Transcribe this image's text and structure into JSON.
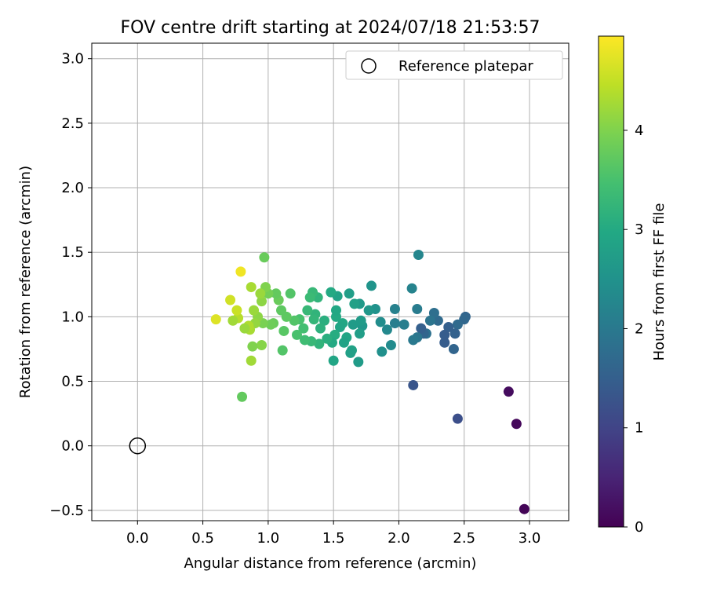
{
  "chart_data": {
    "type": "scatter",
    "title": "FOV centre drift starting at 2024/07/18 21:53:57",
    "xlabel": "Angular distance from reference (arcmin)",
    "ylabel": "Rotation from reference (arcmin)",
    "xlim": [
      -0.35,
      3.3
    ],
    "ylim": [
      -0.58,
      3.12
    ],
    "xticks": [
      "0.0",
      "0.5",
      "1.0",
      "1.5",
      "2.0",
      "2.5",
      "3.0"
    ],
    "yticks": [
      "−0.5",
      "0.0",
      "0.5",
      "1.0",
      "1.5",
      "2.0",
      "2.5",
      "3.0"
    ],
    "grid": true,
    "legend": {
      "position": "top-right",
      "entries": [
        {
          "label": "Reference platepar",
          "marker": "open-circle"
        }
      ]
    },
    "reference": {
      "x": 0.0,
      "y": 0.0
    },
    "colorbar": {
      "label": "Hours from first FF file",
      "ticks": [
        "0",
        "1",
        "2",
        "3",
        "4"
      ],
      "range": [
        0,
        4.95
      ],
      "colormap": "viridis"
    },
    "points": [
      [
        2.96,
        -0.49,
        0.05
      ],
      [
        2.9,
        0.17,
        0.1
      ],
      [
        2.84,
        0.42,
        0.15
      ],
      [
        2.45,
        0.21,
        1.2
      ],
      [
        2.11,
        0.47,
        1.3
      ],
      [
        2.51,
        1.0,
        1.6
      ],
      [
        2.5,
        0.98,
        1.65
      ],
      [
        2.45,
        0.94,
        1.7
      ],
      [
        2.43,
        0.87,
        1.55
      ],
      [
        2.42,
        0.75,
        1.6
      ],
      [
        2.38,
        0.92,
        1.5
      ],
      [
        2.35,
        0.86,
        1.45
      ],
      [
        2.35,
        0.8,
        1.45
      ],
      [
        2.3,
        0.97,
        1.7
      ],
      [
        2.27,
        1.03,
        1.8
      ],
      [
        2.24,
        0.97,
        1.9
      ],
      [
        2.21,
        0.87,
        1.85
      ],
      [
        2.19,
        0.87,
        1.6
      ],
      [
        2.17,
        0.91,
        1.5
      ],
      [
        2.14,
        0.84,
        1.95
      ],
      [
        2.11,
        0.82,
        2.0
      ],
      [
        2.14,
        1.06,
        2.05
      ],
      [
        2.1,
        1.22,
        2.2
      ],
      [
        2.15,
        1.48,
        2.25
      ],
      [
        2.04,
        0.94,
        2.1
      ],
      [
        1.97,
        1.06,
        2.15
      ],
      [
        1.97,
        0.95,
        2.1
      ],
      [
        1.94,
        0.78,
        2.35
      ],
      [
        1.91,
        0.9,
        2.3
      ],
      [
        1.87,
        0.73,
        2.45
      ],
      [
        1.86,
        0.96,
        2.4
      ],
      [
        1.82,
        1.06,
        2.5
      ],
      [
        1.79,
        1.24,
        2.55
      ],
      [
        1.77,
        1.05,
        2.6
      ],
      [
        1.72,
        0.93,
        2.6
      ],
      [
        1.71,
        0.97,
        2.7
      ],
      [
        1.7,
        1.1,
        2.65
      ],
      [
        1.7,
        0.87,
        2.75
      ],
      [
        1.69,
        0.65,
        2.7
      ],
      [
        1.66,
        1.1,
        2.8
      ],
      [
        1.65,
        0.94,
        2.7
      ],
      [
        1.64,
        0.74,
        2.85
      ],
      [
        1.63,
        0.72,
        2.8
      ],
      [
        1.62,
        1.18,
        2.75
      ],
      [
        1.6,
        0.84,
        2.9
      ],
      [
        1.58,
        0.8,
        2.85
      ],
      [
        1.57,
        0.95,
        2.95
      ],
      [
        1.55,
        0.92,
        2.9
      ],
      [
        1.53,
        1.16,
        2.85
      ],
      [
        1.52,
        1.0,
        3.0
      ],
      [
        1.52,
        1.05,
        2.95
      ],
      [
        1.51,
        0.86,
        3.05
      ],
      [
        1.5,
        0.66,
        2.9
      ],
      [
        1.49,
        0.8,
        3.0
      ],
      [
        1.48,
        1.19,
        3.0
      ],
      [
        1.45,
        0.83,
        3.1
      ],
      [
        1.43,
        0.97,
        3.1
      ],
      [
        1.4,
        0.91,
        3.15
      ],
      [
        1.39,
        0.79,
        3.2
      ],
      [
        1.38,
        1.15,
        3.2
      ],
      [
        1.36,
        1.02,
        3.2
      ],
      [
        1.35,
        0.98,
        3.25
      ],
      [
        1.34,
        1.19,
        3.3
      ],
      [
        1.33,
        0.81,
        3.3
      ],
      [
        1.32,
        1.15,
        3.35
      ],
      [
        1.3,
        1.05,
        3.3
      ],
      [
        1.28,
        0.82,
        3.4
      ],
      [
        1.27,
        0.91,
        3.45
      ],
      [
        1.24,
        0.98,
        3.5
      ],
      [
        1.22,
        0.86,
        3.5
      ],
      [
        1.2,
        0.97,
        3.6
      ],
      [
        1.17,
        1.18,
        3.6
      ],
      [
        1.14,
        1.0,
        3.7
      ],
      [
        1.12,
        0.89,
        3.65
      ],
      [
        1.11,
        0.74,
        3.6
      ],
      [
        1.1,
        1.05,
        3.7
      ],
      [
        1.08,
        1.13,
        3.8
      ],
      [
        1.06,
        1.18,
        3.75
      ],
      [
        1.04,
        0.95,
        3.8
      ],
      [
        1.02,
        0.94,
        3.85
      ],
      [
        1.0,
        1.18,
        3.9
      ],
      [
        0.98,
        1.23,
        4.0
      ],
      [
        0.97,
        1.46,
        3.8
      ],
      [
        0.96,
        0.95,
        3.95
      ],
      [
        0.95,
        1.12,
        4.1
      ],
      [
        0.95,
        0.78,
        4.05
      ],
      [
        0.94,
        1.18,
        4.2
      ],
      [
        0.92,
        1.0,
        4.1
      ],
      [
        0.9,
        0.95,
        4.15
      ],
      [
        0.89,
        1.05,
        4.2
      ],
      [
        0.88,
        0.77,
        4.0
      ],
      [
        0.87,
        1.23,
        4.3
      ],
      [
        0.87,
        0.66,
        4.25
      ],
      [
        0.86,
        0.9,
        4.3
      ],
      [
        0.85,
        0.93,
        4.35
      ],
      [
        0.82,
        0.91,
        4.2
      ],
      [
        0.8,
        0.38,
        3.75
      ],
      [
        0.79,
        1.35,
        4.85
      ],
      [
        0.77,
        0.99,
        4.4
      ],
      [
        0.76,
        1.05,
        4.55
      ],
      [
        0.73,
        0.97,
        4.25
      ],
      [
        0.71,
        1.13,
        4.6
      ],
      [
        0.6,
        0.98,
        4.7
      ]
    ]
  }
}
